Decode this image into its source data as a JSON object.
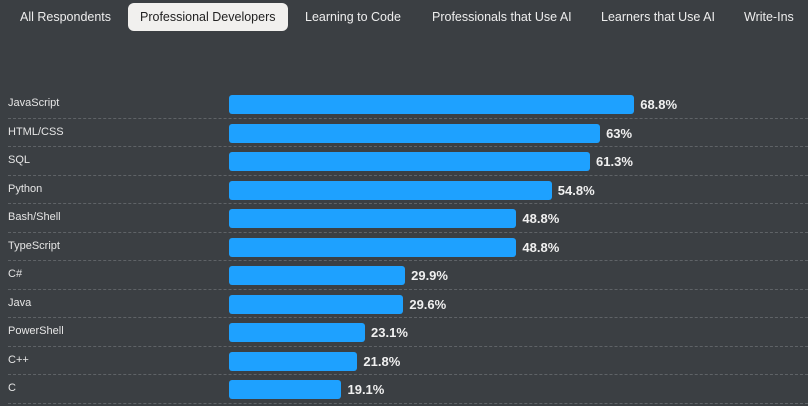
{
  "tabs": [
    {
      "label": "All Respondents",
      "active": false
    },
    {
      "label": "Professional Developers",
      "active": true
    },
    {
      "label": "Learning to Code",
      "active": false
    },
    {
      "label": "Professionals that Use AI",
      "active": false
    },
    {
      "label": "Learners that Use AI",
      "active": false
    },
    {
      "label": "Write-Ins",
      "active": false
    }
  ],
  "chart_data": {
    "type": "bar",
    "orientation": "horizontal",
    "categories": [
      "JavaScript",
      "HTML/CSS",
      "SQL",
      "Python",
      "Bash/Shell",
      "TypeScript",
      "C#",
      "Java",
      "PowerShell",
      "C++",
      "C"
    ],
    "values": [
      68.8,
      63,
      61.3,
      54.8,
      48.8,
      48.8,
      29.9,
      29.6,
      23.1,
      21.8,
      19.1
    ],
    "value_labels": [
      "68.8%",
      "63%",
      "61.3%",
      "54.8%",
      "48.8%",
      "48.8%",
      "29.9%",
      "29.6%",
      "23.1%",
      "21.8%",
      "19.1%"
    ],
    "bar_color": "#1ea1ff",
    "unit": "%"
  }
}
